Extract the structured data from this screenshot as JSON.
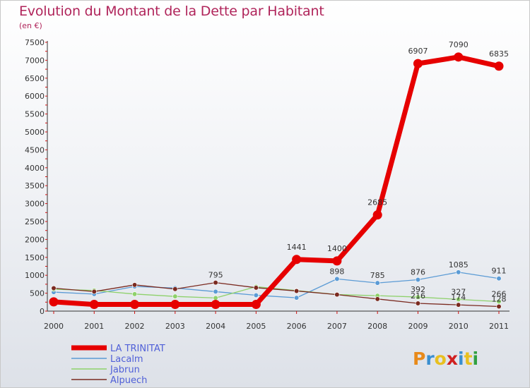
{
  "title": "Evolution du Montant de la Dette par Habitant",
  "subtitle": "(en €)",
  "logo": {
    "text": "Proxiti",
    "colors": [
      "#e88a1a",
      "#3a8fd0",
      "#e8c020",
      "#d02020",
      "#3a8fd0",
      "#e8c020",
      "#30a040"
    ]
  },
  "chart_data": {
    "type": "line",
    "x": [
      "2000",
      "2001",
      "2002",
      "2003",
      "2004",
      "2005",
      "2006",
      "2007",
      "2008",
      "2009",
      "2010",
      "2011"
    ],
    "ylim": [
      0,
      7500
    ],
    "yticks": [
      0,
      500,
      1000,
      1500,
      2000,
      2500,
      3000,
      3500,
      4000,
      4500,
      5000,
      5500,
      6000,
      6500,
      7000,
      7500
    ],
    "grid": false,
    "legend_position": "bottom-left",
    "series": [
      {
        "name": "LA TRINITAT",
        "color": "#e60000",
        "width": 7,
        "values": [
          259,
          186,
          186,
          186,
          186,
          186,
          1441,
          1400,
          2685,
          6907,
          7090,
          6835
        ],
        "labels": [
          "",
          "",
          "",
          "",
          "",
          "",
          "1441",
          "1400",
          "2685",
          "6907",
          "7090",
          "6835"
        ]
      },
      {
        "name": "Lacalm",
        "color": "#5b9bd5",
        "width": 1.3,
        "values": [
          530,
          475,
          686,
          645,
          543,
          443,
          372,
          898,
          785,
          876,
          1085,
          911
        ],
        "labels": [
          "",
          "",
          "",
          "",
          "",
          "",
          "",
          "898",
          "785",
          "876",
          "1085",
          "911"
        ]
      },
      {
        "name": "Jabrun",
        "color": "#8ed16b",
        "width": 1.3,
        "values": [
          610,
          576,
          476,
          410,
          366,
          682,
          572,
          462,
          430,
          392,
          327,
          266
        ],
        "labels": [
          "",
          "",
          "",
          "",
          "",
          "",
          "",
          "",
          "",
          "392",
          "327",
          "266"
        ]
      },
      {
        "name": "Alpuech",
        "color": "#7a2a20",
        "width": 1.3,
        "values": [
          640,
          545,
          732,
          615,
          795,
          653,
          562,
          460,
          338,
          216,
          174,
          128
        ],
        "labels": [
          "",
          "",
          "",
          "",
          "795",
          "",
          "",
          "",
          "",
          "216",
          "174",
          "128"
        ]
      }
    ]
  }
}
